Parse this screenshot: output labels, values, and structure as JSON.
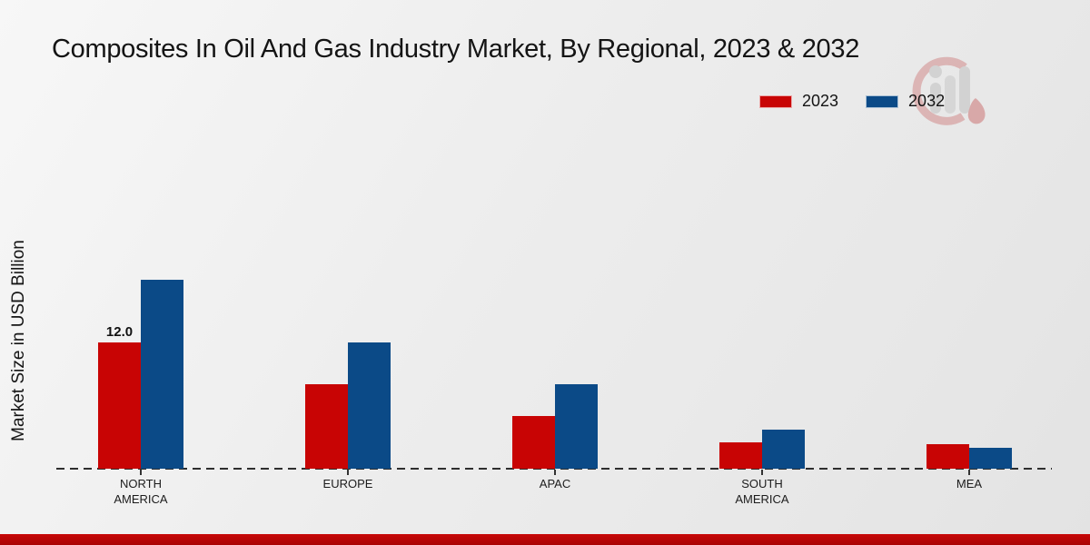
{
  "chart_data": {
    "type": "bar",
    "title": "Composites In Oil And Gas Industry Market, By Regional, 2023 & 2032",
    "ylabel": "Market Size in USD Billion",
    "xlabel": "",
    "categories": [
      "NORTH AMERICA",
      "EUROPE",
      "APAC",
      "SOUTH AMERICA",
      "MEA"
    ],
    "series": [
      {
        "name": "2023",
        "color": "#c80404",
        "values": [
          12.0,
          8.0,
          5.0,
          2.5,
          2.3
        ],
        "labels": [
          "12.0",
          "",
          "",
          "",
          ""
        ]
      },
      {
        "name": "2032",
        "color": "#0b4a87",
        "values": [
          18.0,
          12.0,
          8.0,
          3.7,
          2.0
        ],
        "labels": [
          "",
          "",
          "",
          "",
          ""
        ]
      }
    ],
    "ylim": [
      0,
      20
    ],
    "grid": "off",
    "axis_line_style": "dashed",
    "legend_position": "top-right",
    "data_label_shown": "12.0"
  },
  "page": {
    "background_color": "#ededed",
    "footer_color": "#b50505",
    "watermark_icon": "mrfr-logo"
  }
}
